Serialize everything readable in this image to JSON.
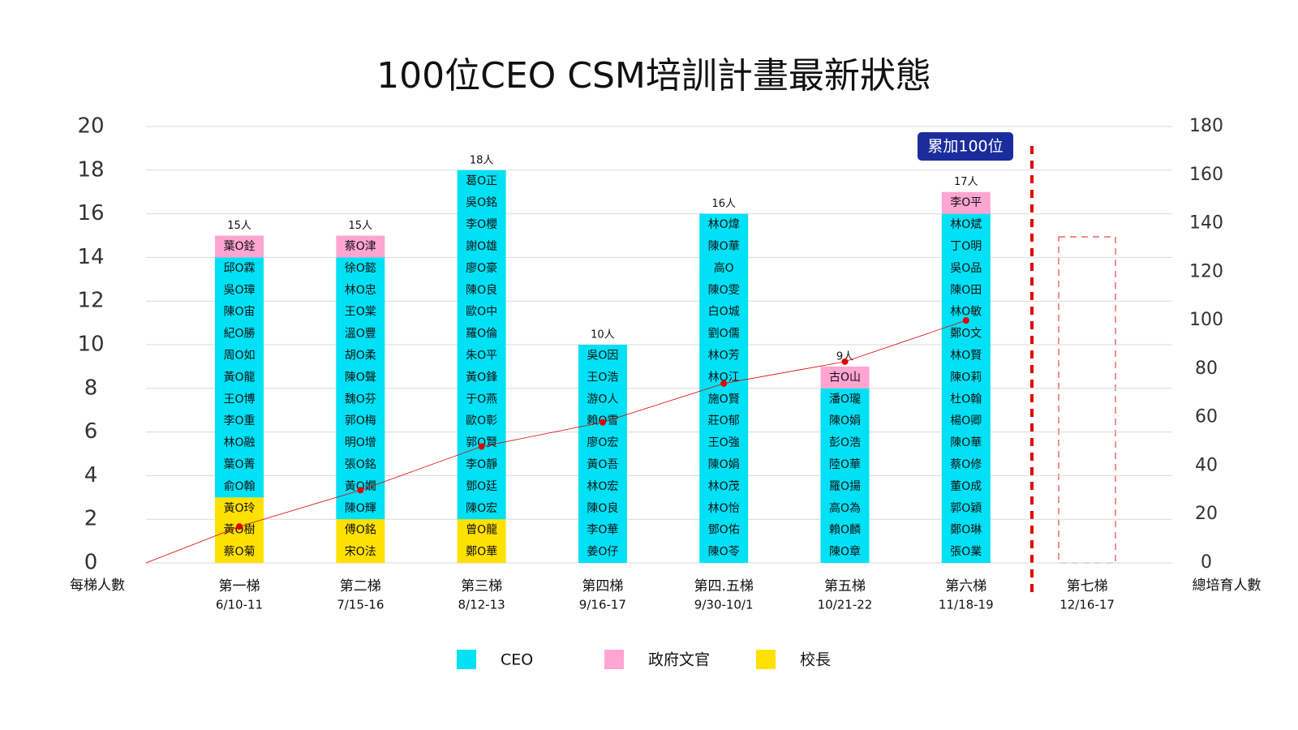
{
  "chart_data": {
    "type": "bar",
    "title": "100位CEO CSM培訓計畫最新狀態",
    "categories": [
      "第一梯",
      "第二梯",
      "第三梯",
      "第四梯",
      "第四.五梯",
      "第五梯",
      "第六梯",
      "第七梯"
    ],
    "category_dates": [
      "6/10-11",
      "7/15-16",
      "8/12-13",
      "9/16-17",
      "9/30-10/1",
      "10/21-22",
      "11/18-19",
      "12/16-17"
    ],
    "ylabel": "每梯人數",
    "y2label": "總培育人數",
    "ylim": [
      0,
      20
    ],
    "yticks": [
      0,
      2,
      4,
      6,
      8,
      10,
      12,
      14,
      16,
      18,
      20
    ],
    "y2lim": [
      0,
      180
    ],
    "y2ticks": [
      0,
      20,
      40,
      60,
      80,
      100,
      120,
      140,
      160,
      180
    ],
    "grid": true,
    "series": [
      {
        "name": "CEO",
        "color": "#00e1f5",
        "values": [
          11,
          12,
          16,
          10,
          16,
          8,
          16,
          null
        ],
        "members": [
          [
            "俞O翰",
            "葉O菁",
            "林O融",
            "李O重",
            "王O博",
            "黃O龍",
            "周O如",
            "紀O勝",
            "陳O宙",
            "吳O璋",
            "邱O霖"
          ],
          [
            "陳O輝",
            "黃O嫺",
            "張O銘",
            "明O增",
            "郭O梅",
            "魏O芬",
            "陳O聲",
            "胡O柔",
            "溫O豐",
            "王O棠",
            "林O忠",
            "徐O懿"
          ],
          [
            "陳O宏",
            "鄧O廷",
            "李O靜",
            "郭O賢",
            "歐O彰",
            "于O燕",
            "黃O鋒",
            "朱O平",
            "羅O倫",
            "歐O中",
            "陳O良",
            "廖O豪",
            "謝O雄",
            "李O櫻",
            "吳O銘",
            "葛O正"
          ],
          [
            "姜O仔",
            "李O華",
            "陳O良",
            "林O宏",
            "黃O吾",
            "廖O宏",
            "賴O雪",
            "游O人",
            "王O浩",
            "吳O因"
          ],
          [
            "陳O苓",
            "鄧O佑",
            "林O怡",
            "林O茂",
            "陳O娟",
            "王O強",
            "莊O郁",
            "施O賢",
            "林O江",
            "林O芳",
            "劉O儒",
            "白O城",
            "陳O雯",
            "高O",
            "陳O華",
            "林O煒"
          ],
          [
            "陳O章",
            "賴O麟",
            "高O為",
            "羅O揚",
            "陸O華",
            "彭O浩",
            "陳O娟",
            "潘O瓏"
          ],
          [
            "張O業",
            "鄭O琳",
            "郭O穎",
            "董O成",
            "蔡O修",
            "陳O華",
            "楊O卿",
            "杜O翰",
            "陳O莉",
            "林O賢",
            "鄭O文",
            "林O敏",
            "陳O田",
            "吳O品",
            "丁O明",
            "林O斌"
          ],
          null
        ]
      },
      {
        "name": "政府文官",
        "color": "#ffa5d2",
        "values": [
          1,
          1,
          0,
          0,
          0,
          1,
          1,
          null
        ],
        "members": [
          [
            "葉O銓"
          ],
          [
            "蔡O津"
          ],
          null,
          null,
          null,
          [
            "古O山"
          ],
          [
            "李O平"
          ],
          null
        ]
      },
      {
        "name": "校長",
        "color": "#ffe100",
        "values": [
          3,
          2,
          2,
          0,
          0,
          0,
          0,
          null
        ],
        "members": [
          [
            "蔡O菊",
            "黃O樹",
            "黃O玲"
          ],
          [
            "宋O法",
            "傅O銘"
          ],
          [
            "鄭O華",
            "曾O龍"
          ],
          null,
          null,
          null,
          null,
          null
        ]
      }
    ],
    "totals": {
      "values": [
        15,
        15,
        18,
        10,
        16,
        9,
        17,
        null
      ],
      "value_labels": [
        "15人",
        "15人",
        "18人",
        "10人",
        "16人",
        "9人",
        "17人",
        null
      ]
    },
    "cumulative": {
      "axis": "y2",
      "color": "#e00000",
      "values": [
        15,
        30,
        48,
        58,
        74,
        83,
        100,
        null
      ]
    },
    "annotation": "累加100位"
  }
}
